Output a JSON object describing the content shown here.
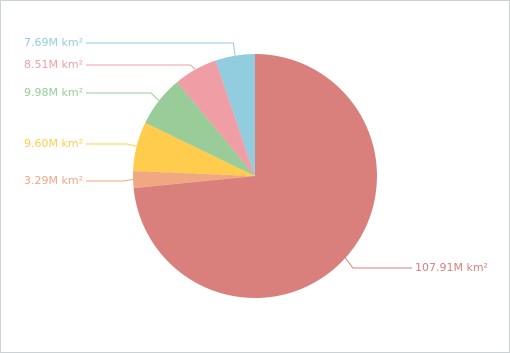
{
  "chart_data": {
    "type": "pie",
    "categories": [
      null,
      null,
      null,
      null,
      null,
      null
    ],
    "values": [
      107.91,
      3.29,
      9.6,
      9.98,
      8.51,
      7.69
    ],
    "value_labels": [
      "107.91M km²",
      "3.29M km²",
      "9.60M km²",
      "9.98M km²",
      "8.51M km²",
      "7.69M km²"
    ],
    "colors": [
      "#d9807c",
      "#f0a882",
      "#ffcc4d",
      "#99cc99",
      "#ef9ea6",
      "#92cddf"
    ]
  }
}
